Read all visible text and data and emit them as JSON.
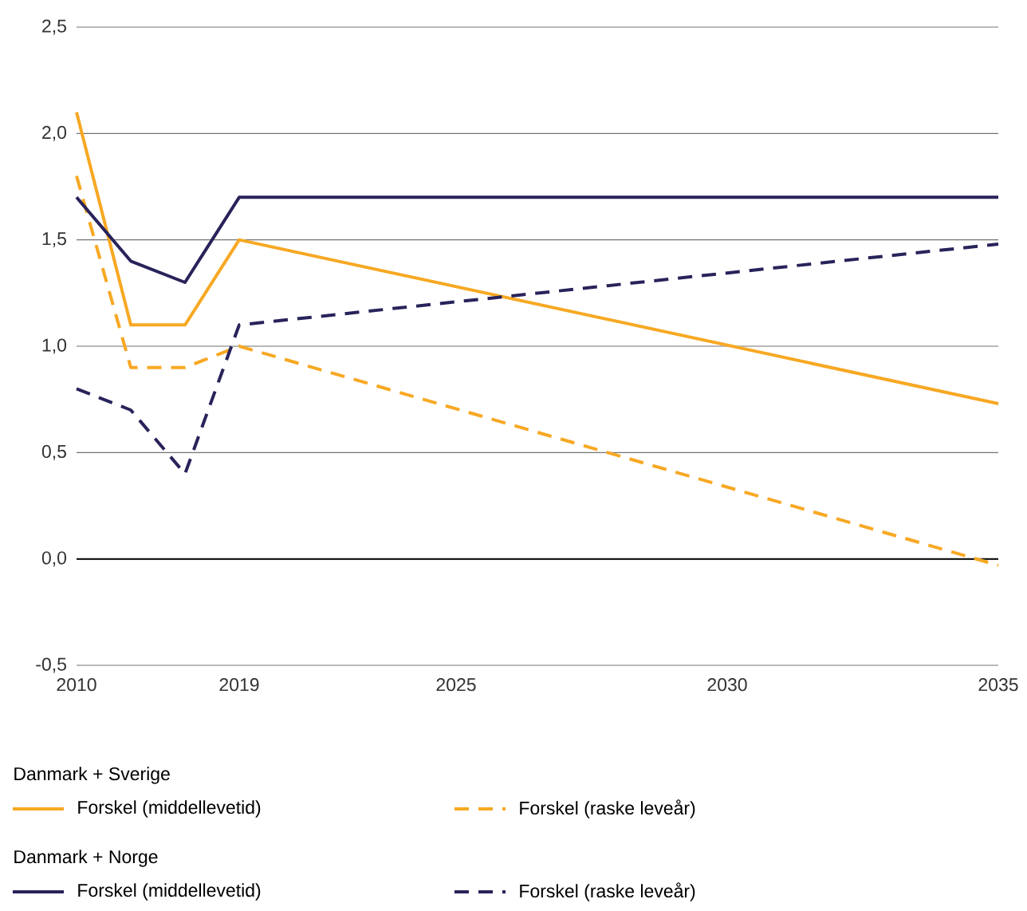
{
  "chart_data": {
    "type": "line",
    "categories": [
      "2010",
      null,
      null,
      "2019",
      null,
      null,
      null,
      "2025",
      null,
      null,
      null,
      null,
      "2030",
      null,
      null,
      null,
      null,
      "2035"
    ],
    "series": [
      {
        "name": "Forskel (middellevetid)",
        "color": "#f7a823",
        "line_style": "solid",
        "values": [
          2.1,
          1.1,
          1.1,
          1.5,
          null,
          null,
          null,
          null,
          null,
          null,
          null,
          null,
          null,
          null,
          null,
          null,
          null,
          0.73
        ]
      },
      {
        "name": "Forskel (raske leveår)",
        "color": "#f7a823",
        "line_style": "dashed",
        "values": [
          1.8,
          0.9,
          0.9,
          1.0,
          null,
          null,
          null,
          null,
          null,
          null,
          null,
          null,
          null,
          null,
          null,
          null,
          null,
          -0.03
        ]
      },
      {
        "name": "Forskel (middellevetid)",
        "color": "#28235a",
        "line_style": "solid",
        "values": [
          1.7,
          1.4,
          1.3,
          1.7,
          null,
          null,
          null,
          null,
          null,
          null,
          null,
          null,
          null,
          null,
          null,
          null,
          null,
          1.7
        ]
      },
      {
        "name": "Forskel (raske leveår)",
        "color": "#28235a",
        "line_style": "dashed",
        "values": [
          0.8,
          0.7,
          0.4,
          1.1,
          null,
          null,
          null,
          null,
          null,
          null,
          null,
          null,
          null,
          null,
          null,
          null,
          null,
          1.48
        ]
      }
    ],
    "ylim": [
      -0.5,
      2.5
    ],
    "yticks": [
      {
        "value": -0.5,
        "label": "-0,5"
      },
      {
        "value": 0,
        "label": "0,0"
      },
      {
        "value": 0.5,
        "label": "0,5"
      },
      {
        "value": 1,
        "label": "1,0"
      },
      {
        "value": 1.5,
        "label": "1,5"
      },
      {
        "value": 2,
        "label": "2,0"
      },
      {
        "value": 2.5,
        "label": "2,5"
      }
    ],
    "grid": "y",
    "ref_lines": [
      {
        "axis": "y",
        "value": 0,
        "color": "#000000"
      }
    ],
    "legend": "bottom",
    "annotations": [
      "Danmark + Sverige",
      "Danmark + Norge"
    ]
  }
}
